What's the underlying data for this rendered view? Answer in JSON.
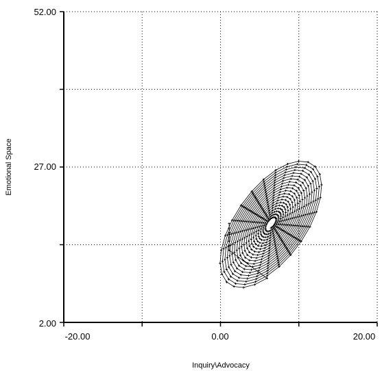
{
  "chart_data": {
    "type": "line",
    "title": "",
    "xlabel": "Inquiry\\Advocacy",
    "ylabel": "Emotional Space",
    "xlim": [
      -20,
      20
    ],
    "ylim": [
      2,
      52
    ],
    "x_ticks": [
      -20,
      -10,
      0,
      10,
      20
    ],
    "y_ticks": [
      2,
      14.5,
      27,
      39.5,
      52
    ],
    "x_tick_labels": [
      "-20.00",
      "0.00",
      "20.00"
    ],
    "y_tick_labels": [
      "2.00",
      "27.00",
      "52.00"
    ],
    "grid": true,
    "grid_style": "dotted",
    "legend": "none",
    "trajectory": {
      "start": [
        1.1,
        16.8
      ],
      "center": [
        6.5,
        17.9
      ],
      "rotation_deg": 55,
      "semi_axis_major": 9.5,
      "semi_axis_minor": 4.6,
      "loops": 20,
      "points_per_loop": 26,
      "final_scale": 0.08
    }
  },
  "colors": {
    "background": "#ffffff",
    "axis": "#000000",
    "grid": "#000000",
    "trajectory": "#000000"
  }
}
